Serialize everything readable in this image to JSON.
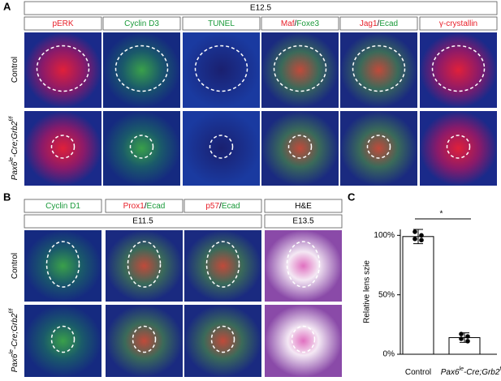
{
  "panel_a": {
    "letter": "A",
    "stage": "E12.5",
    "columns": [
      {
        "parts": [
          {
            "text": "pERK",
            "color": "#e8202a"
          }
        ]
      },
      {
        "parts": [
          {
            "text": "Cyclin D3",
            "color": "#1a9a3a"
          }
        ]
      },
      {
        "parts": [
          {
            "text": "TUNEL",
            "color": "#1a9a3a"
          }
        ]
      },
      {
        "parts": [
          {
            "text": "Maf",
            "color": "#e8202a"
          },
          {
            "text": "/",
            "color": "#000000"
          },
          {
            "text": "Foxe3",
            "color": "#1a9a3a"
          }
        ]
      },
      {
        "parts": [
          {
            "text": "Jag1",
            "color": "#e8202a"
          },
          {
            "text": "/",
            "color": "#000000"
          },
          {
            "text": "Ecad",
            "color": "#1a9a3a"
          }
        ]
      },
      {
        "parts": [
          {
            "text": "γ-crystallin",
            "color": "#e8202a"
          }
        ]
      }
    ],
    "rows": [
      {
        "parts": [
          {
            "text": "Control"
          }
        ]
      },
      {
        "italic": true,
        "parts": [
          {
            "text": "Pax6"
          },
          {
            "text": "le",
            "sup": true
          },
          {
            "text": "-Cre;Grb2"
          },
          {
            "text": "f/f",
            "sup": true
          }
        ]
      }
    ]
  },
  "panel_b": {
    "letter": "B",
    "columns": [
      {
        "parts": [
          {
            "text": "Cyclin D1",
            "color": "#1a9a3a"
          }
        ]
      },
      {
        "parts": [
          {
            "text": "Prox1",
            "color": "#e8202a"
          },
          {
            "text": "/",
            "color": "#000000"
          },
          {
            "text": "Ecad",
            "color": "#1a9a3a"
          }
        ]
      },
      {
        "parts": [
          {
            "text": "p57",
            "color": "#e8202a"
          },
          {
            "text": "/",
            "color": "#000000"
          },
          {
            "text": "Ecad",
            "color": "#1a9a3a"
          }
        ]
      },
      {
        "parts": [
          {
            "text": "H&E",
            "color": "#000000"
          }
        ]
      }
    ],
    "stages": [
      {
        "text": "E11.5",
        "span": 3
      },
      {
        "text": "E13.5",
        "span": 1
      }
    ],
    "rows": [
      {
        "parts": [
          {
            "text": "Control"
          }
        ]
      },
      {
        "italic": true,
        "parts": [
          {
            "text": "Pax6"
          },
          {
            "text": "le",
            "sup": true
          },
          {
            "text": "-Cre;Grb2"
          },
          {
            "text": "f/f",
            "sup": true
          }
        ]
      }
    ]
  },
  "chart_data": {
    "type": "bar",
    "letter": "C",
    "ylabel": "Relative lens szie",
    "categories": [
      [
        {
          "text": "Control"
        }
      ],
      [
        {
          "text": "Pax6",
          "italic": true
        },
        {
          "text": "le",
          "sup": true,
          "italic": true
        },
        {
          "text": "-Cre;Grb2",
          "italic": true
        },
        {
          "text": "f/f",
          "sup": true,
          "italic": true
        }
      ]
    ],
    "values": [
      99,
      14
    ],
    "errors": [
      6,
      4
    ],
    "points": [
      [
        103,
        100,
        97,
        96
      ],
      [
        17,
        15,
        13,
        11
      ]
    ],
    "color": "#ffffff",
    "ylim": [
      0,
      105
    ],
    "yticks": [
      {
        "value": 0,
        "label": "0%"
      },
      {
        "value": 50,
        "label": "50%"
      },
      {
        "value": 100,
        "label": "100%"
      }
    ],
    "annotation": "*"
  }
}
